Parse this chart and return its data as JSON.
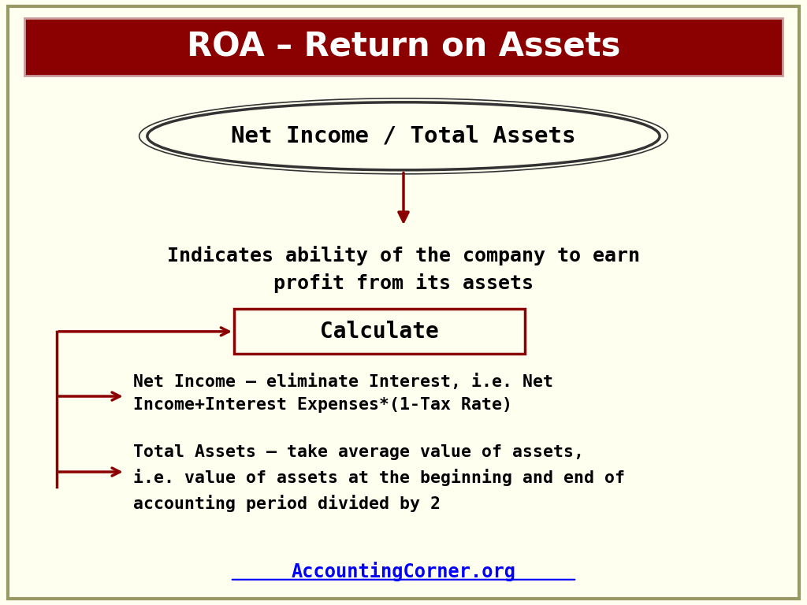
{
  "bg_color": "#FFFFF0",
  "title_text": "ROA – Return on Assets",
  "title_bg": "#8B0000",
  "title_text_color": "#FFFFFF",
  "ellipse_text": "Net Income / Total Assets",
  "ellipse_fill": "#FFFFF0",
  "ellipse_border": "#333333",
  "indicates_text": "Indicates ability of the company to earn\nprofit from its assets",
  "calculate_text": "Calculate",
  "calculate_fill": "#FFFFF0",
  "calculate_border": "#8B0000",
  "bullet1_text": "Net Income – eliminate Interest, i.e. Net\nIncome+Interest Expenses*(1-Tax Rate)",
  "bullet2_text": "Total Assets – take average value of assets,\ni.e. value of assets at the beginning and end of\naccounting period divided by 2",
  "footer_text": "AccountingCorner.org",
  "footer_color": "#0000FF",
  "arrow_color": "#8B0000",
  "text_color": "#000000"
}
